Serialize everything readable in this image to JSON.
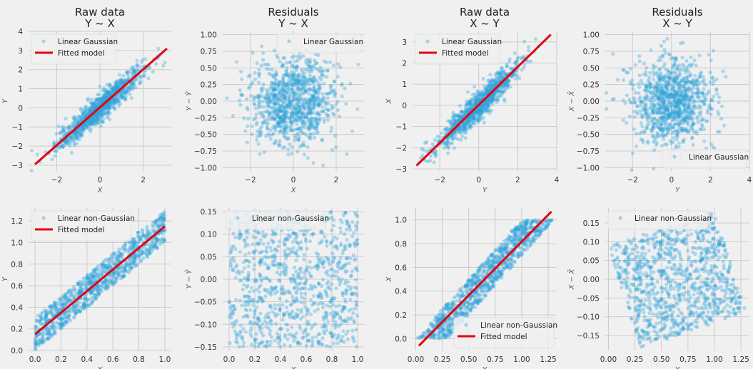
{
  "figure": {
    "background": "#f0f0f0",
    "scatter_color": "#30a2da",
    "line_color": "#e5000e",
    "grid_color": "#cbcbcb"
  },
  "chart_data": [
    {
      "type": "scatter",
      "id": "raw-yx-gaussian",
      "title": [
        "Raw data",
        "Y ~ X"
      ],
      "xlabel": "X",
      "ylabel": "Y",
      "xlim": [
        -3.3,
        3.3
      ],
      "ylim": [
        -3.3,
        4.0
      ],
      "xticks": [
        "-2",
        "0",
        "2"
      ],
      "xtick_values": [
        -2,
        0,
        2
      ],
      "yticks": [
        "-3",
        "-2",
        "-1",
        "0",
        "1",
        "2",
        "3",
        "4"
      ],
      "ytick_values": [
        -3,
        -2,
        -1,
        0,
        1,
        2,
        3,
        4
      ],
      "grid": true,
      "legend": {
        "placement": "top-left",
        "entries": [
          {
            "label": "Linear Gaussian",
            "kind": "scatter"
          },
          {
            "label": "Fitted model",
            "kind": "line"
          }
        ]
      },
      "scatter": {
        "n": 1000,
        "distribution": "gaussian",
        "x_mean": 0,
        "x_std": 1,
        "slope": 1.0,
        "intercept": 0,
        "noise_std": 0.35
      },
      "fit_line": {
        "x": [
          -3.0,
          3.1
        ],
        "y": [
          -2.95,
          3.1
        ]
      }
    },
    {
      "type": "scatter",
      "id": "resid-yx-gaussian",
      "title": [
        "Residuals",
        "Y ~ X"
      ],
      "xlabel": "X",
      "ylabel": "Y − Ŷ",
      "xlim": [
        -3.3,
        3.3
      ],
      "ylim": [
        -1.05,
        1.05
      ],
      "xticks": [
        "-2",
        "0",
        "2"
      ],
      "xtick_values": [
        -2,
        0,
        2
      ],
      "yticks": [
        "-1.00",
        "-0.75",
        "-0.50",
        "-0.25",
        "0.00",
        "0.25",
        "0.50",
        "0.75",
        "1.00"
      ],
      "ytick_values": [
        -1.0,
        -0.75,
        -0.5,
        -0.25,
        0.0,
        0.25,
        0.5,
        0.75,
        1.0
      ],
      "grid": true,
      "legend": {
        "placement": "top-right",
        "entries": [
          {
            "label": "Linear Gaussian",
            "kind": "scatter"
          }
        ]
      },
      "scatter": {
        "n": 1000,
        "distribution": "gaussian-residual",
        "x_mean": 0,
        "x_std": 1,
        "noise_std": 0.33
      }
    },
    {
      "type": "scatter",
      "id": "raw-xy-gaussian",
      "title": [
        "Raw data",
        "X ~ Y"
      ],
      "xlabel": "Y",
      "ylabel": "X",
      "xlim": [
        -3.4,
        4.0
      ],
      "ylim": [
        -3.1,
        3.5
      ],
      "xticks": [
        "-2",
        "0",
        "2",
        "4"
      ],
      "xtick_values": [
        -2,
        0,
        2,
        4
      ],
      "yticks": [
        "-3",
        "-2",
        "-1",
        "0",
        "1",
        "2",
        "3"
      ],
      "ytick_values": [
        -3,
        -2,
        -1,
        0,
        1,
        2,
        3
      ],
      "grid": true,
      "legend": {
        "placement": "top-left",
        "entries": [
          {
            "label": "Linear Gaussian",
            "kind": "scatter"
          },
          {
            "label": "Fitted model",
            "kind": "line"
          }
        ]
      },
      "scatter": {
        "n": 1000,
        "distribution": "gaussian",
        "x_mean": 0,
        "x_std": 1.05,
        "slope": 0.9,
        "intercept": 0,
        "noise_std": 0.33
      },
      "fit_line": {
        "x": [
          -3.2,
          3.7
        ],
        "y": [
          -2.85,
          3.35
        ]
      }
    },
    {
      "type": "scatter",
      "id": "resid-xy-gaussian",
      "title": [
        "Residuals",
        "X ~ Y"
      ],
      "xlabel": "Y",
      "ylabel": "X − X̂",
      "xlim": [
        -3.4,
        4.0
      ],
      "ylim": [
        -1.05,
        1.05
      ],
      "xticks": [
        "-2",
        "0",
        "2",
        "4"
      ],
      "xtick_values": [
        -2,
        0,
        2,
        4
      ],
      "yticks": [
        "-1.00",
        "-0.75",
        "-0.50",
        "-0.25",
        "0.00",
        "0.25",
        "0.50",
        "0.75",
        "1.00"
      ],
      "ytick_values": [
        -1.0,
        -0.75,
        -0.5,
        -0.25,
        0.0,
        0.25,
        0.5,
        0.75,
        1.0
      ],
      "grid": true,
      "legend": {
        "placement": "bottom-right",
        "entries": [
          {
            "label": "Linear Gaussian",
            "kind": "scatter"
          }
        ]
      },
      "scatter": {
        "n": 1000,
        "distribution": "gaussian-residual",
        "x_mean": 0,
        "x_std": 1.05,
        "noise_std": 0.33
      }
    },
    {
      "type": "scatter",
      "id": "raw-yx-nongaussian",
      "title": [],
      "xlabel": "X",
      "ylabel": "Y",
      "xlim": [
        -0.05,
        1.05
      ],
      "ylim": [
        0.0,
        1.32
      ],
      "xticks": [
        "0.0",
        "0.2",
        "0.4",
        "0.6",
        "0.8",
        "1.0"
      ],
      "xtick_values": [
        0,
        0.2,
        0.4,
        0.6,
        0.8,
        1.0
      ],
      "yticks": [
        "0.0",
        "0.2",
        "0.4",
        "0.6",
        "0.8",
        "1.0",
        "1.2"
      ],
      "ytick_values": [
        0,
        0.2,
        0.4,
        0.6,
        0.8,
        1.0,
        1.2
      ],
      "grid": true,
      "legend": {
        "placement": "top-left",
        "entries": [
          {
            "label": "Linear non-Gaussian",
            "kind": "scatter"
          },
          {
            "label": "Fitted model",
            "kind": "line"
          }
        ]
      },
      "scatter": {
        "n": 1000,
        "distribution": "uniform",
        "x_range": [
          0,
          1
        ],
        "slope": 1.0,
        "intercept": 0.15,
        "noise_range": [
          -0.15,
          0.15
        ]
      },
      "fit_line": {
        "x": [
          0.0,
          1.0
        ],
        "y": [
          0.15,
          1.15
        ]
      }
    },
    {
      "type": "scatter",
      "id": "resid-yx-nongaussian",
      "title": [],
      "xlabel": "X",
      "ylabel": "Y − Ŷ",
      "xlim": [
        -0.05,
        1.05
      ],
      "ylim": [
        -0.158,
        0.158
      ],
      "xticks": [
        "0.0",
        "0.2",
        "0.4",
        "0.6",
        "0.8",
        "1.0"
      ],
      "xtick_values": [
        0,
        0.2,
        0.4,
        0.6,
        0.8,
        1.0
      ],
      "yticks": [
        "-0.15",
        "-0.10",
        "-0.05",
        "0.00",
        "0.05",
        "0.10",
        "0.15"
      ],
      "ytick_values": [
        -0.15,
        -0.1,
        -0.05,
        0,
        0.05,
        0.1,
        0.15
      ],
      "grid": true,
      "legend": {
        "placement": "top-left",
        "entries": [
          {
            "label": "Linear non-Gaussian",
            "kind": "scatter"
          }
        ]
      },
      "scatter": {
        "n": 1000,
        "distribution": "uniform-residual",
        "x_range": [
          0,
          1
        ],
        "noise_range": [
          -0.15,
          0.15
        ]
      }
    },
    {
      "type": "scatter",
      "id": "raw-xy-nongaussian",
      "title": [],
      "xlabel": "Y",
      "ylabel": "X",
      "xlim": [
        -0.03,
        1.33
      ],
      "ylim": [
        -0.1,
        1.1
      ],
      "xticks": [
        "0.00",
        "0.25",
        "0.50",
        "0.75",
        "1.00",
        "1.25"
      ],
      "xtick_values": [
        0,
        0.25,
        0.5,
        0.75,
        1.0,
        1.25
      ],
      "yticks": [
        "0.0",
        "0.2",
        "0.4",
        "0.6",
        "0.8",
        "1.0"
      ],
      "ytick_values": [
        0,
        0.2,
        0.4,
        0.6,
        0.8,
        1.0
      ],
      "grid": true,
      "legend": {
        "placement": "bottom-right",
        "entries": [
          {
            "label": "Linear non-Gaussian",
            "kind": "scatter"
          },
          {
            "label": "Fitted model",
            "kind": "line"
          }
        ]
      },
      "scatter": {
        "n": 1000,
        "distribution": "uniform-swapped",
        "x_range": [
          0,
          1
        ],
        "slope": 1.0,
        "intercept": 0.15,
        "noise_range": [
          -0.15,
          0.15
        ]
      },
      "fit_line": {
        "x": [
          0.03,
          1.28
        ],
        "y": [
          -0.06,
          1.07
        ]
      }
    },
    {
      "type": "scatter",
      "id": "resid-xy-nongaussian",
      "title": [],
      "xlabel": "Y",
      "ylabel": "X − X̂",
      "xlim": [
        -0.03,
        1.33
      ],
      "ylim": [
        -0.19,
        0.19
      ],
      "xticks": [
        "0.00",
        "0.25",
        "0.50",
        "0.75",
        "1.00",
        "1.25"
      ],
      "xtick_values": [
        0,
        0.25,
        0.5,
        0.75,
        1.0,
        1.25
      ],
      "yticks": [
        "-0.15",
        "-0.10",
        "-0.05",
        "0.00",
        "0.05",
        "0.10",
        "0.15"
      ],
      "ytick_values": [
        -0.15,
        -0.1,
        -0.05,
        0,
        0.05,
        0.1,
        0.15
      ],
      "grid": true,
      "legend": {
        "placement": "top-left",
        "entries": [
          {
            "label": "Linear non-Gaussian",
            "kind": "scatter"
          }
        ]
      },
      "scatter": {
        "n": 1000,
        "distribution": "uniform-swapped-residual",
        "x_range": [
          0,
          1
        ],
        "slope": 1.0,
        "intercept": 0.15,
        "noise_range": [
          -0.15,
          0.15
        ],
        "fit_slope": 0.905,
        "fit_intercept": -0.088
      }
    }
  ]
}
